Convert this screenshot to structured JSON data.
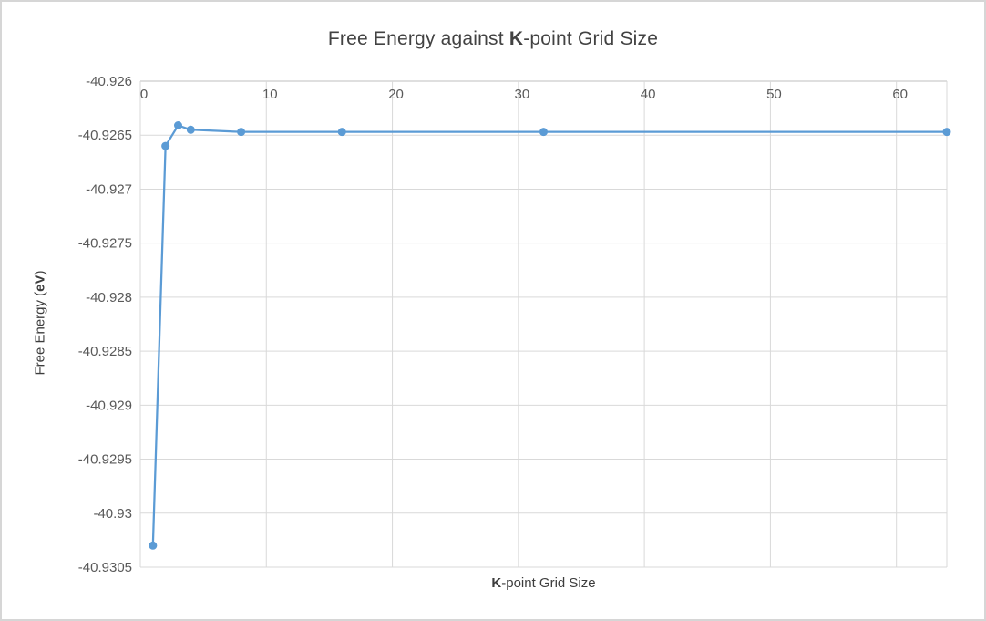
{
  "title": {
    "prefix": "Free Energy against ",
    "bold": "K",
    "suffix": "-point Grid Size"
  },
  "axis_titles": {
    "x": {
      "bold": "K",
      "suffix": "-point Grid Size"
    },
    "y": {
      "prefix": "Free Energy (",
      "bold": "eV",
      "suffix": ")"
    }
  },
  "chart_data": {
    "type": "line",
    "title": "Free Energy against K-point Grid Size",
    "xlabel": "K-point Grid Size",
    "ylabel": "Free Energy (eV)",
    "x": [
      1,
      2,
      3,
      4,
      8,
      16,
      32,
      64
    ],
    "y": [
      -40.9303,
      -40.9266,
      -40.92641,
      -40.92645,
      -40.92647,
      -40.92647,
      -40.92647,
      -40.92647
    ],
    "xlim": [
      0,
      64
    ],
    "ylim": [
      -40.9305,
      -40.926
    ],
    "x_ticks": [
      0,
      10,
      20,
      30,
      40,
      50,
      60
    ],
    "x_tick_labels": [
      "0",
      "10",
      "20",
      "30",
      "40",
      "50",
      "60"
    ],
    "y_ticks": [
      -40.926,
      -40.9265,
      -40.927,
      -40.9275,
      -40.928,
      -40.9285,
      -40.929,
      -40.9295,
      -40.93,
      -40.9305
    ],
    "y_tick_labels": [
      "-40.926",
      "-40.9265",
      "-40.927",
      "-40.9275",
      "-40.928",
      "-40.9285",
      "-40.929",
      "-40.9295",
      "-40.93",
      "-40.9305"
    ],
    "grid": true,
    "legend": "none",
    "marker": "circle",
    "series_name": "Free Energy",
    "colors": {
      "line": "#5B9BD5",
      "marker": "#5B9BD5",
      "gridline": "#D9D9D9",
      "axis_line": "#BFBFBF",
      "tick_text": "#595959",
      "title_text": "#424242"
    }
  }
}
